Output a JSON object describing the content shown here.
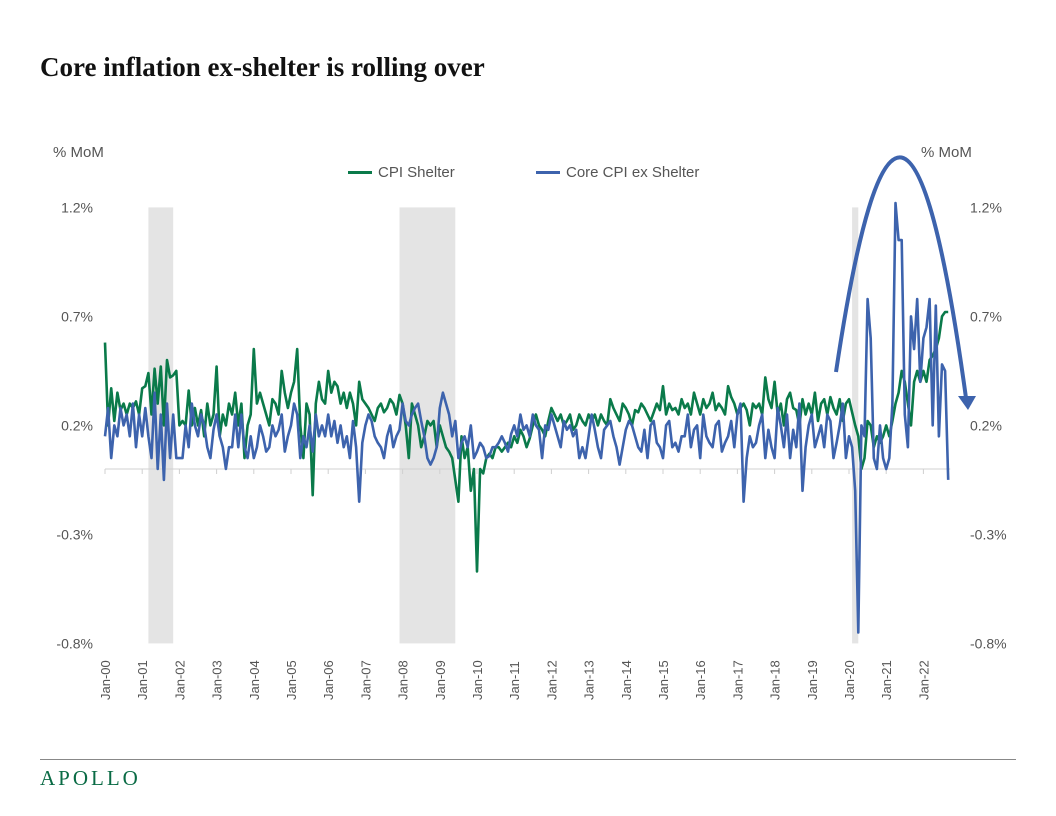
{
  "title": "Core inflation ex-shelter is rolling over",
  "logo": "APOLLO",
  "chart_data": {
    "type": "line",
    "title": "Core inflation ex-shelter is rolling over",
    "ylabel_left": "% MoM",
    "ylabel_right": "% MoM",
    "ylim": [
      -0.8,
      1.2
    ],
    "yticks": [
      1.2,
      0.7,
      0.2,
      -0.3,
      -0.8
    ],
    "ytick_labels": [
      "1.2%",
      "0.7%",
      "0.2%",
      "-0.3%",
      "-0.8%"
    ],
    "x_start": "Jan-00",
    "x_frequency": "monthly",
    "xtick_labels": [
      "Jan-00",
      "Jan-01",
      "Jan-02",
      "Jan-03",
      "Jan-04",
      "Jan-05",
      "Jan-06",
      "Jan-07",
      "Jan-08",
      "Jan-09",
      "Jan-10",
      "Jan-11",
      "Jan-12",
      "Jan-13",
      "Jan-14",
      "Jan-15",
      "Jan-16",
      "Jan-17",
      "Jan-18",
      "Jan-19",
      "Jan-20",
      "Jan-21",
      "Jan-22"
    ],
    "legend_placement": "top-center",
    "grid": false,
    "recessions": [
      [
        "Mar-01",
        "Nov-01"
      ],
      [
        "Dec-07",
        "Jun-09"
      ],
      [
        "Feb-20",
        "Apr-20"
      ]
    ],
    "annotation": "arched arrow over 2020-2022 indicating rise and roll-over",
    "series": [
      {
        "name": "CPI Shelter",
        "color": "#0a7a4a",
        "values": [
          0.58,
          0.2,
          0.37,
          0.22,
          0.35,
          0.27,
          0.3,
          0.25,
          0.3,
          0.28,
          0.31,
          0.25,
          0.37,
          0.38,
          0.44,
          0.25,
          0.46,
          0.3,
          0.47,
          0.2,
          0.5,
          0.42,
          0.43,
          0.45,
          0.2,
          0.22,
          0.2,
          0.36,
          0.2,
          0.28,
          0.2,
          0.27,
          0.15,
          0.3,
          0.2,
          0.25,
          0.47,
          0.15,
          0.25,
          0.2,
          0.3,
          0.25,
          0.35,
          0.2,
          0.3,
          0.05,
          0.2,
          0.25,
          0.55,
          0.3,
          0.35,
          0.3,
          0.25,
          0.2,
          0.32,
          0.3,
          0.25,
          0.45,
          0.35,
          0.28,
          0.35,
          0.4,
          0.55,
          0.2,
          0.05,
          0.3,
          0.25,
          -0.12,
          0.3,
          0.4,
          0.32,
          0.3,
          0.45,
          0.35,
          0.4,
          0.38,
          0.3,
          0.35,
          0.28,
          0.35,
          0.3,
          0.2,
          0.4,
          0.32,
          0.3,
          0.28,
          0.25,
          0.22,
          0.28,
          0.3,
          0.26,
          0.28,
          0.32,
          0.3,
          0.25,
          0.34,
          0.3,
          0.2,
          0.05,
          0.3,
          0.25,
          0.2,
          0.1,
          0.15,
          0.22,
          0.2,
          0.22,
          0.1,
          0.2,
          0.15,
          0.1,
          0.08,
          0.05,
          -0.05,
          -0.15,
          0.15,
          0.05,
          0.1,
          -0.1,
          0.0,
          -0.47,
          0.0,
          -0.02,
          0.05,
          0.07,
          0.05,
          0.1,
          0.1,
          0.08,
          0.1,
          0.12,
          0.1,
          0.15,
          0.12,
          0.18,
          0.15,
          0.1,
          0.14,
          0.2,
          0.25,
          0.2,
          0.18,
          0.15,
          0.22,
          0.28,
          0.25,
          0.22,
          0.25,
          0.2,
          0.22,
          0.25,
          0.18,
          0.2,
          0.25,
          0.22,
          0.2,
          0.25,
          0.22,
          0.25,
          0.2,
          0.25,
          0.22,
          0.2,
          0.32,
          0.28,
          0.25,
          0.22,
          0.3,
          0.28,
          0.25,
          0.2,
          0.27,
          0.26,
          0.3,
          0.28,
          0.25,
          0.22,
          0.26,
          0.3,
          0.27,
          0.38,
          0.25,
          0.3,
          0.27,
          0.28,
          0.25,
          0.32,
          0.28,
          0.3,
          0.25,
          0.35,
          0.3,
          0.25,
          0.32,
          0.28,
          0.3,
          0.35,
          0.27,
          0.3,
          0.28,
          0.25,
          0.38,
          0.33,
          0.3,
          0.25,
          0.28,
          0.3,
          0.27,
          0.2,
          0.3,
          0.28,
          0.3,
          0.25,
          0.42,
          0.32,
          0.28,
          0.4,
          0.25,
          0.3,
          0.2,
          0.32,
          0.35,
          0.28,
          0.27,
          0.2,
          0.32,
          0.25,
          0.3,
          0.25,
          0.35,
          0.22,
          0.3,
          0.32,
          0.25,
          0.33,
          0.28,
          0.25,
          0.32,
          0.22,
          0.3,
          0.32,
          0.26,
          0.2,
          0.15,
          0.0,
          0.05,
          0.22,
          0.2,
          0.1,
          0.15,
          0.12,
          0.15,
          0.2,
          0.15,
          0.22,
          0.3,
          0.35,
          0.45,
          0.4,
          0.3,
          0.2,
          0.4,
          0.45,
          0.4,
          0.45,
          0.4,
          0.5,
          0.52,
          0.55,
          0.6,
          0.7,
          0.72,
          0.72
        ]
      },
      {
        "name": "Core CPI ex Shelter",
        "color": "#3d63ad",
        "values": [
          0.15,
          0.28,
          0.05,
          0.2,
          0.15,
          0.28,
          0.2,
          0.25,
          0.15,
          0.3,
          0.1,
          0.25,
          0.15,
          0.28,
          0.15,
          0.05,
          0.35,
          0.0,
          0.25,
          -0.05,
          0.3,
          0.05,
          0.25,
          0.05,
          0.05,
          0.05,
          0.2,
          0.1,
          0.3,
          0.2,
          0.15,
          0.25,
          0.2,
          0.1,
          0.05,
          0.18,
          0.25,
          0.15,
          0.1,
          0.0,
          0.1,
          0.1,
          0.25,
          0.1,
          0.25,
          0.1,
          0.05,
          0.15,
          0.05,
          0.1,
          0.2,
          0.15,
          0.08,
          0.1,
          0.2,
          0.15,
          0.18,
          0.25,
          0.08,
          0.15,
          0.2,
          0.3,
          0.25,
          0.05,
          0.15,
          0.1,
          0.2,
          0.08,
          0.25,
          0.15,
          0.2,
          0.15,
          0.25,
          0.15,
          0.22,
          0.12,
          0.2,
          0.1,
          0.15,
          0.05,
          0.22,
          0.1,
          -0.15,
          0.12,
          0.2,
          0.25,
          0.22,
          0.15,
          0.12,
          0.1,
          0.05,
          0.15,
          0.2,
          0.1,
          0.15,
          0.18,
          0.3,
          0.22,
          0.2,
          0.25,
          0.28,
          0.3,
          0.22,
          0.15,
          0.05,
          0.02,
          0.05,
          0.1,
          0.28,
          0.35,
          0.3,
          0.25,
          0.15,
          0.22,
          0.05,
          0.12,
          0.15,
          0.1,
          0.2,
          0.05,
          0.08,
          0.12,
          0.1,
          0.05,
          0.06,
          0.1,
          0.1,
          0.12,
          0.15,
          0.12,
          0.08,
          0.16,
          0.2,
          0.15,
          0.25,
          0.18,
          0.2,
          0.15,
          0.25,
          0.2,
          0.18,
          0.05,
          0.2,
          0.18,
          0.25,
          0.2,
          0.15,
          0.1,
          0.22,
          0.18,
          0.2,
          0.15,
          0.18,
          0.05,
          0.1,
          0.05,
          0.15,
          0.25,
          0.18,
          0.1,
          0.05,
          0.18,
          0.2,
          0.22,
          0.15,
          0.1,
          0.02,
          0.1,
          0.18,
          0.22,
          0.2,
          0.15,
          0.1,
          0.08,
          0.18,
          0.05,
          0.2,
          0.22,
          0.12,
          0.1,
          0.05,
          0.2,
          0.22,
          0.1,
          0.12,
          0.08,
          0.15,
          0.15,
          0.25,
          0.1,
          0.18,
          0.2,
          0.05,
          0.25,
          0.15,
          0.12,
          0.1,
          0.2,
          0.22,
          0.08,
          0.12,
          0.15,
          0.22,
          0.1,
          0.25,
          0.3,
          -0.15,
          0.05,
          0.15,
          0.1,
          0.12,
          0.2,
          0.25,
          0.05,
          0.18,
          0.1,
          0.05,
          0.28,
          0.2,
          0.1,
          0.25,
          0.05,
          0.18,
          0.1,
          0.3,
          -0.1,
          0.1,
          0.2,
          0.25,
          0.1,
          0.15,
          0.2,
          0.1,
          0.25,
          0.22,
          0.05,
          0.12,
          0.2,
          0.3,
          0.05,
          0.15,
          0.1,
          -0.1,
          -0.75,
          0.2,
          0.15,
          0.78,
          0.6,
          0.05,
          0.0,
          0.2,
          0.05,
          0.0,
          0.05,
          0.3,
          1.22,
          1.05,
          1.05,
          0.25,
          0.1,
          0.7,
          0.55,
          0.78,
          0.4,
          0.6,
          0.65,
          0.78,
          0.2,
          0.75,
          0.15,
          0.48,
          0.45,
          -0.05
        ]
      }
    ]
  }
}
